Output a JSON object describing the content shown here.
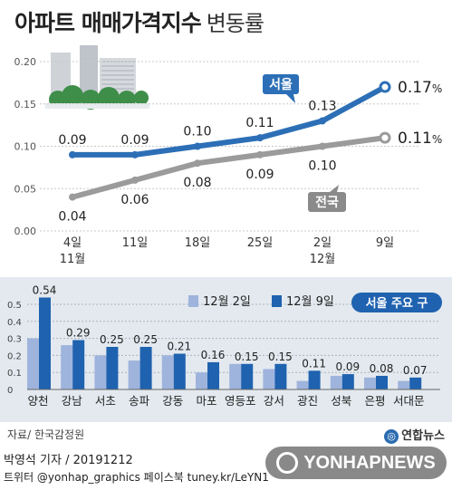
{
  "header": {
    "title": "아파트 매매가격지수",
    "subtitle": "변동률"
  },
  "colors": {
    "seoul": "#2c6fb6",
    "national": "#9b9b9b",
    "bar_prev": "#9fb4dc",
    "bar_curr": "#1f62b0",
    "panel_bg": "#e3e9ef"
  },
  "chart_data": [
    {
      "type": "line",
      "x": [
        "4일\n11월",
        "11일",
        "18일",
        "25일",
        "2일\n12월",
        "9일"
      ],
      "ylim": [
        0,
        0.2
      ],
      "yticks": [
        "0.00",
        "0.05",
        "0.10",
        "0.15",
        "0.20"
      ],
      "series": [
        {
          "name": "서울",
          "values": [
            0.09,
            0.09,
            0.1,
            0.11,
            0.13,
            0.17
          ],
          "labels": [
            "0.09",
            "0.09",
            "0.10",
            "0.11",
            "0.13",
            "0.17"
          ]
        },
        {
          "name": "전국",
          "values": [
            0.04,
            0.06,
            0.08,
            0.09,
            0.1,
            0.11
          ],
          "labels": [
            "0.04",
            "0.06",
            "0.08",
            "0.09",
            "0.10",
            "0.11"
          ]
        }
      ],
      "last_suffix": "%",
      "grid": true
    },
    {
      "type": "bar",
      "title": "서울 주요 구",
      "categories": [
        "양천",
        "강남",
        "서초",
        "송파",
        "강동",
        "마포",
        "영등포",
        "강서",
        "광진",
        "성북",
        "은평",
        "서대문"
      ],
      "series": [
        {
          "name": "12월 2일",
          "values": [
            0.3,
            0.26,
            0.2,
            0.17,
            0.2,
            0.1,
            0.15,
            0.12,
            0.05,
            0.08,
            0.07,
            0.05
          ]
        },
        {
          "name": "12월 9일",
          "values": [
            0.54,
            0.29,
            0.25,
            0.25,
            0.21,
            0.16,
            0.15,
            0.15,
            0.11,
            0.09,
            0.08,
            0.07
          ],
          "labels": [
            "0.54",
            "0.29",
            "0.25",
            "0.25",
            "0.21",
            "0.16",
            "0.15",
            "0.15",
            "0.11",
            "0.09",
            "0.08",
            "0.07"
          ]
        }
      ],
      "ylim": [
        0,
        0.55
      ],
      "yticks": [
        "0",
        "0.1",
        "0.2",
        "0.3",
        "0.4",
        "0.5"
      ],
      "legend_position": "top"
    }
  ],
  "footer": {
    "source": "자료/ 한국감정원",
    "credit": "박영석 기자 / 20191212",
    "social": "트위터 @yonhap_graphics  페이스북 tuney.kr/LeYN1",
    "logo_text": "연합뉴스",
    "watermark_text": "YONHAPNEWS"
  }
}
